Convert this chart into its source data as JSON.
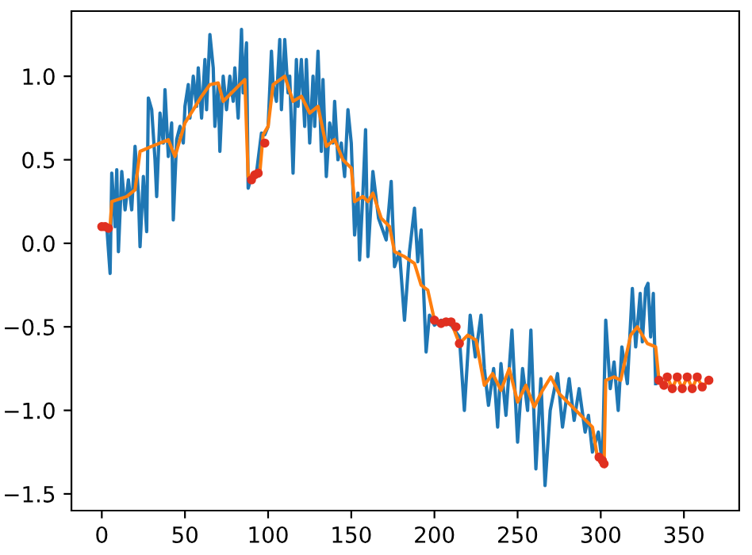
{
  "chart_data": {
    "type": "line",
    "xlim": [
      -18.25,
      383.25
    ],
    "ylim": [
      -1.6,
      1.39
    ],
    "xticks": [
      0,
      50,
      100,
      150,
      200,
      250,
      300,
      350
    ],
    "yticks": [
      {
        "value": -1.5,
        "label": "−1.5"
      },
      {
        "value": -1.0,
        "label": "−1.0"
      },
      {
        "value": -0.5,
        "label": "−0.5"
      },
      {
        "value": 0,
        "label": "0.0"
      },
      {
        "value": 0.5,
        "label": "0.5"
      },
      {
        "value": 1.0,
        "label": "1.0"
      }
    ],
    "series": [
      {
        "color": "#1f77b4",
        "x": [
          0,
          3,
          5,
          6,
          8,
          9,
          10,
          12,
          14,
          16,
          18,
          20,
          22,
          23,
          25,
          27,
          28,
          30,
          32,
          33,
          35,
          37,
          38,
          40,
          42,
          43,
          45,
          47,
          49,
          50,
          52,
          53,
          55,
          57,
          58,
          60,
          62,
          63,
          65,
          67,
          68,
          70,
          71,
          73,
          75,
          77,
          79,
          80,
          82,
          84,
          85,
          87,
          88,
          90,
          93,
          96,
          98,
          100,
          102,
          103,
          105,
          107,
          108,
          110,
          112,
          113,
          115,
          117,
          118,
          120,
          122,
          123,
          125,
          127,
          128,
          130,
          132,
          133,
          135,
          137,
          139,
          140,
          142,
          144,
          146,
          148,
          150,
          152,
          154,
          155,
          157,
          158.6,
          160,
          163,
          166.4,
          171,
          174,
          176,
          179,
          182,
          185,
          188,
          190,
          192,
          195,
          197,
          200,
          204,
          210,
          215,
          218,
          221.5,
          224.6,
          228,
          230,
          232.5,
          235.6,
          238,
          240,
          243,
          246.6,
          250,
          253,
          256,
          258,
          261,
          264,
          266.5,
          269.6,
          274,
          277,
          281,
          284,
          287,
          290.6,
          292.6,
          295,
          298.6,
          301,
          303,
          305.7,
          308,
          310.5,
          312.7,
          316,
          319,
          321,
          323.7,
          325,
          327,
          328.4,
          330,
          331.6,
          333
        ],
        "values": [
          0.1,
          0.1,
          -0.18,
          0.42,
          0.1,
          0.44,
          -0.05,
          0.43,
          0.2,
          0.38,
          0.2,
          0.58,
          0.3,
          -0.02,
          0.4,
          0.07,
          0.87,
          0.8,
          0.5,
          0.28,
          0.78,
          0.6,
          0.92,
          0.52,
          0.72,
          0.14,
          0.62,
          0.7,
          0.6,
          0.82,
          0.95,
          0.75,
          1.0,
          0.82,
          1.05,
          0.75,
          1.1,
          0.8,
          1.25,
          1.05,
          0.7,
          0.95,
          0.55,
          1.0,
          0.8,
          1.0,
          0.85,
          1.05,
          0.75,
          1.28,
          0.9,
          1.2,
          0.33,
          0.4,
          0.42,
          0.66,
          0.65,
          0.7,
          1.15,
          0.95,
          0.85,
          1.22,
          0.8,
          1.22,
          0.9,
          1.0,
          0.42,
          1.1,
          0.82,
          1.1,
          0.7,
          1.1,
          0.6,
          1.0,
          0.7,
          1.15,
          0.55,
          0.98,
          0.4,
          0.72,
          0.6,
          0.85,
          0.5,
          0.6,
          0.4,
          0.8,
          0.6,
          0.05,
          0.3,
          -0.1,
          0.3,
          0.68,
          -0.08,
          0.43,
          0.15,
          0.02,
          0.37,
          -0.14,
          -0.05,
          -0.46,
          -0.05,
          0.21,
          -0.11,
          0.08,
          -0.65,
          -0.43,
          -0.49,
          -0.46,
          -0.49,
          -0.56,
          -1.0,
          -0.43,
          -0.68,
          -0.43,
          -0.75,
          -0.97,
          -0.75,
          -1.1,
          -0.72,
          -1.03,
          -0.52,
          -1.19,
          -0.75,
          -1.0,
          -0.52,
          -1.35,
          -0.81,
          -1.45,
          -1.0,
          -0.78,
          -1.1,
          -0.81,
          -1.06,
          -0.87,
          -1.13,
          -1.03,
          -1.25,
          -1.13,
          -1.32,
          -0.46,
          -0.87,
          -0.71,
          -1.0,
          -0.62,
          -0.84,
          -0.27,
          -0.62,
          -0.3,
          -0.59,
          -0.27,
          -0.24,
          -0.56,
          -0.3,
          -0.84
        ]
      },
      {
        "color": "#ff7f0e",
        "x": [
          0,
          5,
          6,
          15,
          20,
          23,
          30,
          40,
          44,
          50,
          55,
          60,
          65,
          70,
          73,
          80,
          86,
          88,
          95,
          97,
          100,
          103,
          110,
          115,
          120,
          125,
          130,
          135,
          140,
          145,
          150,
          152,
          157,
          160,
          163,
          168,
          173,
          176,
          182,
          188,
          192,
          196,
          200,
          205,
          210,
          215,
          220,
          225,
          230,
          235,
          240,
          245,
          250,
          255,
          260,
          265,
          270,
          275,
          280,
          285,
          290,
          295,
          298,
          302,
          303,
          308,
          312,
          318,
          322,
          328,
          333,
          335,
          338,
          340,
          343,
          346,
          349,
          352,
          355,
          358,
          361,
          365
        ],
        "values": [
          0.1,
          0.1,
          0.25,
          0.28,
          0.32,
          0.55,
          0.58,
          0.62,
          0.52,
          0.72,
          0.8,
          0.88,
          0.95,
          0.96,
          0.85,
          0.92,
          0.98,
          0.4,
          0.42,
          0.65,
          0.7,
          0.95,
          1.0,
          0.85,
          0.88,
          0.78,
          0.82,
          0.58,
          0.62,
          0.5,
          0.45,
          0.25,
          0.28,
          0.25,
          0.3,
          0.15,
          0.1,
          -0.05,
          -0.08,
          -0.12,
          -0.25,
          -0.28,
          -0.46,
          -0.48,
          -0.47,
          -0.6,
          -0.55,
          -0.58,
          -0.85,
          -0.78,
          -0.88,
          -0.75,
          -0.95,
          -0.85,
          -0.98,
          -0.88,
          -0.8,
          -0.9,
          -0.95,
          -1.0,
          -1.05,
          -1.1,
          -1.28,
          -1.32,
          -0.82,
          -0.8,
          -0.82,
          -0.55,
          -0.5,
          -0.6,
          -0.62,
          -0.82,
          -0.85,
          -0.8,
          -0.87,
          -0.8,
          -0.87,
          -0.8,
          -0.87,
          -0.8,
          -0.86,
          -0.82
        ]
      },
      {
        "type": "scatter",
        "color": "#e03020",
        "marker": "circle",
        "x": [
          0,
          2,
          4,
          90,
          92,
          94,
          98,
          200,
          204,
          207,
          210,
          213,
          215,
          299,
          301,
          302,
          335,
          338,
          340,
          343,
          346,
          349,
          352,
          355,
          358,
          361,
          365
        ],
        "values": [
          0.1,
          0.1,
          0.09,
          0.38,
          0.41,
          0.42,
          0.6,
          -0.46,
          -0.48,
          -0.47,
          -0.47,
          -0.5,
          -0.6,
          -1.28,
          -1.3,
          -1.32,
          -0.82,
          -0.85,
          -0.8,
          -0.87,
          -0.8,
          -0.87,
          -0.8,
          -0.87,
          -0.8,
          -0.86,
          -0.82
        ]
      }
    ]
  }
}
